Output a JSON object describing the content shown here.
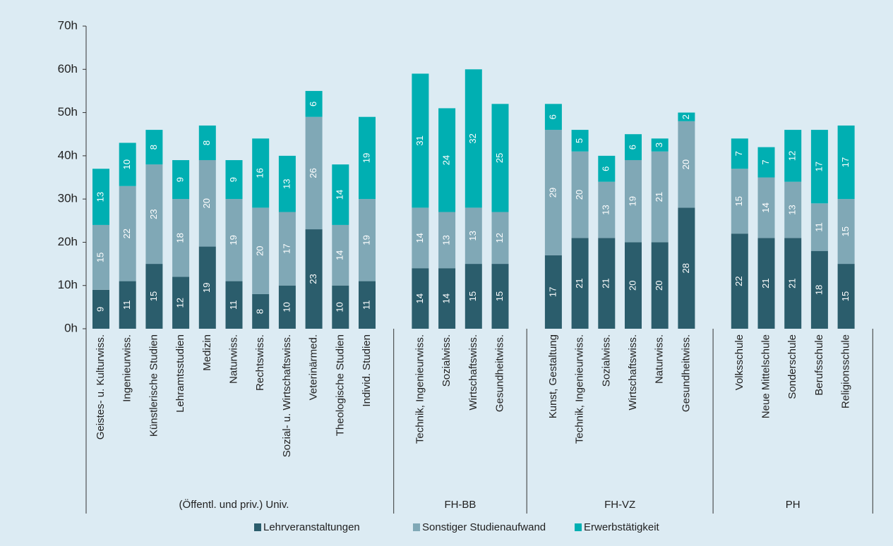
{
  "chart_data": {
    "type": "bar",
    "stacked": true,
    "groups": [
      {
        "label": "(Öffentl. und priv.) Univ.",
        "categories": [
          "Geistes- u. Kulturwiss.",
          "Ingenieurwiss.",
          "Künstlerische Studien",
          "Lehramtsstudien",
          "Medizin",
          "Naturwiss.",
          "Rechtswiss.",
          "Sozial- u. Wirtschaftswiss.",
          "Veterinärmed.",
          "Theologische Studien",
          "Individ. Studien"
        ]
      },
      {
        "label": "FH-BB",
        "categories": [
          "Technik, Ingenieurwiss.",
          "Sozialwiss.",
          "Wirtschaftswiss.",
          "Gesundheitwiss."
        ]
      },
      {
        "label": "FH-VZ",
        "categories": [
          "Kunst, Gestaltung",
          "Technik, Ingenieurwiss.",
          "Sozialwiss.",
          "Wirtschaftswiss.",
          "Naturwiss.",
          "Gesundheitwiss."
        ]
      },
      {
        "label": "PH",
        "categories": [
          "Volksschule",
          "Neue Mittelschule",
          "Sonderschule",
          "Berufsschule",
          "Religionsschule"
        ]
      }
    ],
    "series": [
      {
        "name": "Lehrveranstaltungen",
        "color": "#2b5d6c",
        "values": [
          9,
          11,
          15,
          12,
          19,
          11,
          8,
          10,
          23,
          10,
          11,
          14,
          14,
          15,
          15,
          17,
          21,
          21,
          20,
          20,
          28,
          22,
          21,
          21,
          18,
          15
        ]
      },
      {
        "name": "Sonstiger Studienaufwand",
        "color": "#80a8b6",
        "values": [
          15,
          22,
          23,
          18,
          20,
          19,
          20,
          17,
          26,
          14,
          19,
          14,
          13,
          13,
          12,
          29,
          20,
          13,
          19,
          21,
          20,
          15,
          14,
          13,
          11,
          15
        ]
      },
      {
        "name": "Erwerbstätigkeit",
        "color": "#00afb2",
        "values": [
          13,
          10,
          8,
          9,
          8,
          9,
          16,
          13,
          6,
          14,
          19,
          31,
          24,
          32,
          25,
          6,
          5,
          6,
          6,
          3,
          2,
          7,
          7,
          12,
          17,
          17
        ]
      }
    ],
    "ylim": [
      0,
      70
    ],
    "yticks": [
      {
        "value": 0,
        "label": "0h"
      },
      {
        "value": 10,
        "label": "10h"
      },
      {
        "value": 20,
        "label": "20h"
      },
      {
        "value": 30,
        "label": "30h"
      },
      {
        "value": 40,
        "label": "40h"
      },
      {
        "value": 50,
        "label": "50h"
      },
      {
        "value": 60,
        "label": "60h"
      },
      {
        "value": 70,
        "label": "70h"
      }
    ],
    "legend": "bottom"
  }
}
